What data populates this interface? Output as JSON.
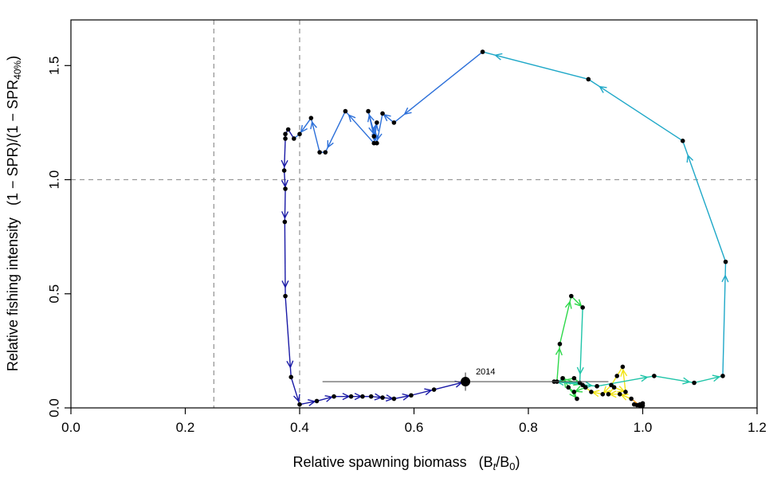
{
  "chart_data": {
    "type": "line",
    "xlabel": "Relative spawning biomass",
    "xlabel_math": [
      "(B",
      "t",
      "/B",
      "0",
      ")"
    ],
    "ylabel": "Relative fishing intensity",
    "ylabel_math": [
      "(1 − SPR)/(1 − SPR",
      "40%",
      ")"
    ],
    "xlim": [
      0.0,
      1.2
    ],
    "ylim": [
      0.0,
      1.7
    ],
    "xticks": [
      "0.0",
      "0.2",
      "0.4",
      "0.6",
      "0.8",
      "1.0",
      "1.2"
    ],
    "yticks": [
      "0.0",
      "0.5",
      "1.0",
      "1.5"
    ],
    "reference_lines": {
      "vertical": [
        0.25,
        0.4
      ],
      "horizontal": [
        1.0
      ]
    },
    "annotation": {
      "label": "2014",
      "x": 0.69,
      "y": 0.115,
      "x_interval": [
        0.44,
        0.94
      ],
      "y_interval": [
        0.075,
        0.155
      ]
    },
    "colors": {
      "dark_blue": "#1a1aa6",
      "blue": "#2b6fd9",
      "cyan": "#1fa8c8",
      "teal": "#1fc4a8",
      "green": "#2ed84a",
      "yellow": "#f2e416",
      "orange": "#f59a1a",
      "red": "#e8231a"
    },
    "points": [
      {
        "x": 0.995,
        "y": 0.015,
        "c": "red"
      },
      {
        "x": 1.0,
        "y": 0.01,
        "c": "orange"
      },
      {
        "x": 0.99,
        "y": 0.012,
        "c": "orange"
      },
      {
        "x": 1.0,
        "y": 0.02,
        "c": "orange"
      },
      {
        "x": 0.985,
        "y": 0.015,
        "c": "orange"
      },
      {
        "x": 0.995,
        "y": 0.01,
        "c": "orange"
      },
      {
        "x": 0.98,
        "y": 0.04,
        "c": "orange"
      },
      {
        "x": 0.96,
        "y": 0.06,
        "c": "yellow"
      },
      {
        "x": 0.94,
        "y": 0.06,
        "c": "yellow"
      },
      {
        "x": 0.95,
        "y": 0.09,
        "c": "yellow"
      },
      {
        "x": 0.97,
        "y": 0.07,
        "c": "yellow"
      },
      {
        "x": 0.965,
        "y": 0.18,
        "c": "yellow"
      },
      {
        "x": 0.955,
        "y": 0.14,
        "c": "yellow"
      },
      {
        "x": 0.945,
        "y": 0.1,
        "c": "yellow"
      },
      {
        "x": 0.93,
        "y": 0.06,
        "c": "yellow"
      },
      {
        "x": 0.91,
        "y": 0.07,
        "c": "yellow"
      },
      {
        "x": 0.9,
        "y": 0.09,
        "c": "yellow"
      },
      {
        "x": 0.88,
        "y": 0.07,
        "c": "green"
      },
      {
        "x": 0.87,
        "y": 0.09,
        "c": "green"
      },
      {
        "x": 0.885,
        "y": 0.04,
        "c": "green"
      },
      {
        "x": 0.86,
        "y": 0.13,
        "c": "green"
      },
      {
        "x": 0.895,
        "y": 0.1,
        "c": "green"
      },
      {
        "x": 0.88,
        "y": 0.13,
        "c": "green"
      },
      {
        "x": 0.85,
        "y": 0.115,
        "c": "green"
      },
      {
        "x": 0.855,
        "y": 0.28,
        "c": "green"
      },
      {
        "x": 0.875,
        "y": 0.49,
        "c": "green"
      },
      {
        "x": 0.895,
        "y": 0.44,
        "c": "green"
      },
      {
        "x": 0.89,
        "y": 0.11,
        "c": "teal"
      },
      {
        "x": 0.845,
        "y": 0.115,
        "c": "teal"
      },
      {
        "x": 0.92,
        "y": 0.095,
        "c": "teal"
      },
      {
        "x": 1.02,
        "y": 0.14,
        "c": "teal"
      },
      {
        "x": 1.09,
        "y": 0.11,
        "c": "teal"
      },
      {
        "x": 1.14,
        "y": 0.14,
        "c": "teal"
      },
      {
        "x": 1.145,
        "y": 0.64,
        "c": "cyan"
      },
      {
        "x": 1.07,
        "y": 1.17,
        "c": "cyan"
      },
      {
        "x": 0.905,
        "y": 1.44,
        "c": "cyan"
      },
      {
        "x": 0.72,
        "y": 1.56,
        "c": "cyan"
      },
      {
        "x": 0.565,
        "y": 1.25,
        "c": "blue"
      },
      {
        "x": 0.545,
        "y": 1.29,
        "c": "blue"
      },
      {
        "x": 0.535,
        "y": 1.16,
        "c": "blue"
      },
      {
        "x": 0.52,
        "y": 1.3,
        "c": "blue"
      },
      {
        "x": 0.53,
        "y": 1.19,
        "c": "blue"
      },
      {
        "x": 0.535,
        "y": 1.25,
        "c": "blue"
      },
      {
        "x": 0.53,
        "y": 1.16,
        "c": "blue"
      },
      {
        "x": 0.48,
        "y": 1.3,
        "c": "blue"
      },
      {
        "x": 0.445,
        "y": 1.12,
        "c": "blue"
      },
      {
        "x": 0.435,
        "y": 1.12,
        "c": "blue"
      },
      {
        "x": 0.42,
        "y": 1.27,
        "c": "blue"
      },
      {
        "x": 0.4,
        "y": 1.2,
        "c": "blue"
      },
      {
        "x": 0.39,
        "y": 1.18,
        "c": "blue"
      },
      {
        "x": 0.38,
        "y": 1.22,
        "c": "dark_blue"
      },
      {
        "x": 0.375,
        "y": 1.2,
        "c": "dark_blue"
      },
      {
        "x": 0.375,
        "y": 1.18,
        "c": "dark_blue"
      },
      {
        "x": 0.373,
        "y": 1.04,
        "c": "dark_blue"
      },
      {
        "x": 0.375,
        "y": 0.96,
        "c": "dark_blue"
      },
      {
        "x": 0.374,
        "y": 0.815,
        "c": "dark_blue"
      },
      {
        "x": 0.375,
        "y": 0.49,
        "c": "dark_blue"
      },
      {
        "x": 0.385,
        "y": 0.135,
        "c": "dark_blue"
      },
      {
        "x": 0.4,
        "y": 0.015,
        "c": "dark_blue"
      },
      {
        "x": 0.43,
        "y": 0.03,
        "c": "dark_blue"
      },
      {
        "x": 0.46,
        "y": 0.05,
        "c": "dark_blue"
      },
      {
        "x": 0.49,
        "y": 0.05,
        "c": "dark_blue"
      },
      {
        "x": 0.51,
        "y": 0.05,
        "c": "dark_blue"
      },
      {
        "x": 0.525,
        "y": 0.05,
        "c": "dark_blue"
      },
      {
        "x": 0.545,
        "y": 0.045,
        "c": "dark_blue"
      },
      {
        "x": 0.565,
        "y": 0.04,
        "c": "dark_blue"
      },
      {
        "x": 0.595,
        "y": 0.055,
        "c": "dark_blue"
      },
      {
        "x": 0.635,
        "y": 0.08,
        "c": "dark_blue"
      },
      {
        "x": 0.69,
        "y": 0.115,
        "c": "dark_blue"
      }
    ]
  }
}
